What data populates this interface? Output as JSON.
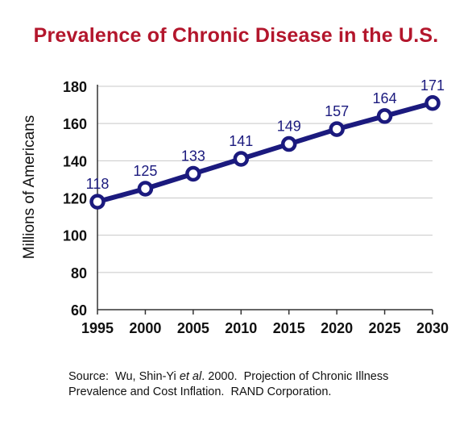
{
  "chart_data": {
    "type": "line",
    "title": "Prevalence of Chronic Disease in the U.S.",
    "xlabel": "",
    "ylabel": "Millions of Americans",
    "categories": [
      "1995",
      "2000",
      "2005",
      "2010",
      "2015",
      "2020",
      "2025",
      "2030"
    ],
    "x": [
      1995,
      2000,
      2005,
      2010,
      2015,
      2020,
      2025,
      2030
    ],
    "values": [
      118,
      125,
      133,
      141,
      149,
      157,
      164,
      171
    ],
    "data_labels": [
      "118",
      "125",
      "133",
      "141",
      "149",
      "157",
      "164",
      "171"
    ],
    "y_ticks": [
      60,
      80,
      100,
      120,
      140,
      160,
      180
    ],
    "y_tick_labels": [
      "60",
      "80",
      "100",
      "120",
      "140",
      "160",
      "180"
    ],
    "ylim": [
      60,
      180
    ],
    "xlim": [
      1995,
      2030
    ],
    "grid": "horizontal",
    "legend": "none",
    "colors": {
      "title": "#b3162c",
      "line": "#1b1a7e",
      "marker_fill": "#ffffff",
      "grid": "#c8c8c8",
      "axis": "#333333",
      "tick_label": "#111111",
      "data_label": "#1b1a7e"
    }
  },
  "source": {
    "line1_prefix": "Source:  Wu, Shin-Yi ",
    "line1_italic": "et al",
    "line1_suffix": ". 2000.  Projection of Chronic Illness",
    "line2": "Prevalence and Cost Inflation.  RAND Corporation."
  }
}
